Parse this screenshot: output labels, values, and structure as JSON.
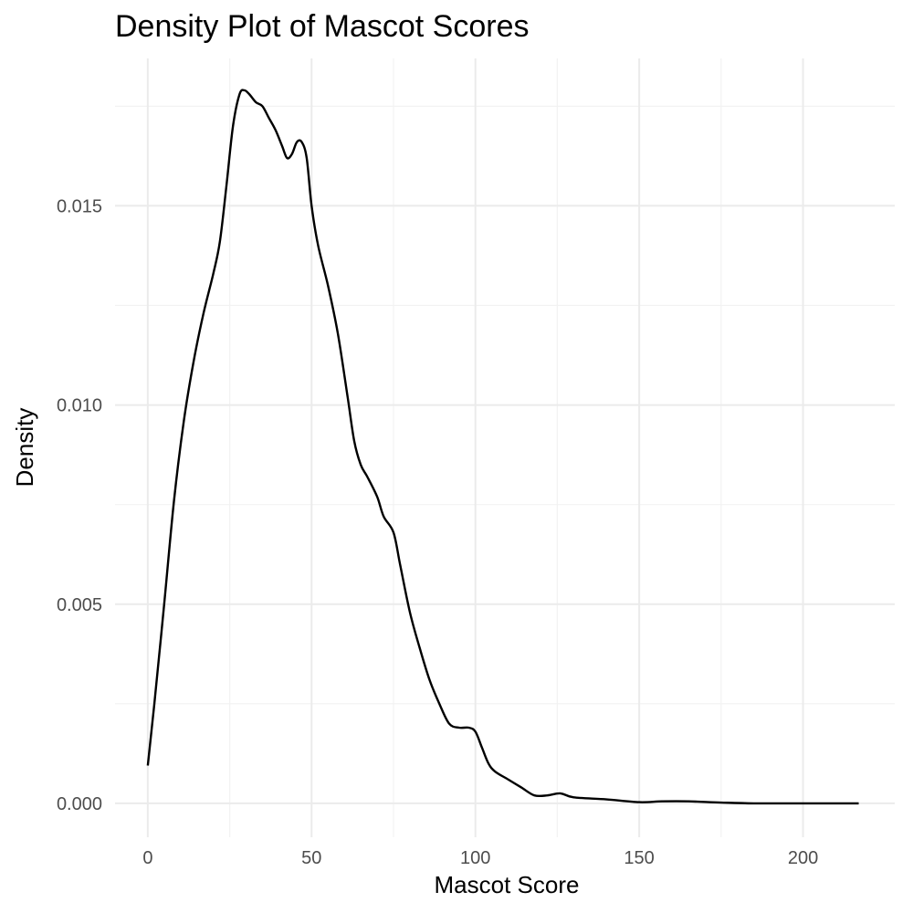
{
  "chart_data": {
    "type": "line",
    "title": "Density Plot of Mascot Scores",
    "xlabel": "Mascot Score",
    "ylabel": "Density",
    "xlim": [
      -10,
      228
    ],
    "ylim": [
      -0.00085,
      0.0187
    ],
    "x_ticks": [
      0,
      50,
      100,
      150,
      200
    ],
    "x_tick_labels": [
      "0",
      "50",
      "100",
      "150",
      "200"
    ],
    "y_ticks": [
      0.0,
      0.005,
      0.01,
      0.015
    ],
    "y_tick_labels": [
      "0.000",
      "0.005",
      "0.010",
      "0.015"
    ],
    "grid": true,
    "legend": "none",
    "colors": {
      "line": "#000000",
      "grid_major": "#ebebeb",
      "grid_minor": "#f2f2f2",
      "tick_text": "#4d4d4d",
      "background": "#ffffff"
    },
    "series": [
      {
        "x": [
          0,
          2,
          5,
          8,
          11,
          14,
          17,
          20,
          22,
          24,
          26,
          28,
          29.5,
          31,
          33,
          35,
          37,
          39,
          41,
          42.5,
          44,
          45.5,
          47,
          48.5,
          50,
          52,
          55,
          58,
          61,
          63,
          65,
          67,
          70,
          72,
          75,
          77,
          80,
          83,
          86,
          89,
          92,
          95,
          98,
          100,
          102,
          104,
          106,
          110,
          114,
          118,
          122,
          126,
          130,
          140,
          150,
          157,
          165,
          175,
          185,
          200,
          217
        ],
        "y": [
          0.00095,
          0.0025,
          0.005,
          0.0076,
          0.0096,
          0.0111,
          0.0123,
          0.0133,
          0.0141,
          0.0155,
          0.017,
          0.0178,
          0.0179,
          0.0178,
          0.0176,
          0.0175,
          0.0172,
          0.0169,
          0.0165,
          0.0162,
          0.0163,
          0.0166,
          0.0166,
          0.0162,
          0.015,
          0.014,
          0.013,
          0.0118,
          0.0102,
          0.0091,
          0.0085,
          0.0082,
          0.0077,
          0.0072,
          0.0068,
          0.006,
          0.0048,
          0.0039,
          0.0031,
          0.0025,
          0.002,
          0.0019,
          0.0019,
          0.0018,
          0.0014,
          0.001,
          0.0008,
          0.0006,
          0.0004,
          0.0002,
          0.0002,
          0.00025,
          0.00015,
          0.0001,
          3e-05,
          5e-05,
          5e-05,
          2e-05,
          0.0,
          0.0,
          0.0
        ]
      }
    ]
  }
}
